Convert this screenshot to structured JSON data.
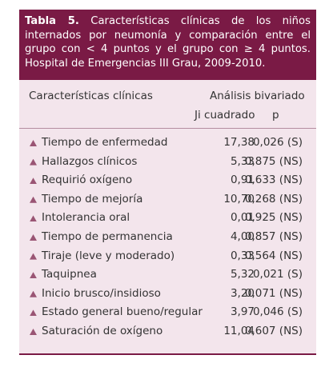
{
  "title": {
    "label": "Tabla 5.",
    "text": "Características clínicas de los niños internados por neumonía y comparación entre el grupo con < 4 puntos y el grupo con ≥ 4 puntos. Hospital de Emergencias III Grau, 2009-2010."
  },
  "table": {
    "header": {
      "col1": "Características clínicas",
      "group": "Análisis bivariado",
      "col2": "Ji cuadrado",
      "col3": "p"
    },
    "rows": [
      [
        "Tiempo de enfermedad",
        "17,38",
        "0,026 (S)"
      ],
      [
        "Hallazgos clínicos",
        "5,33",
        "0,875 (NS)"
      ],
      [
        "Requirió oxígeno",
        "0,91",
        "0,633 (NS)"
      ],
      [
        "Tiempo de mejoría",
        "10,70",
        "0,268 (NS)"
      ],
      [
        "Intolerancia oral",
        "0,01",
        "0,925 (NS)"
      ],
      [
        "Tiempo de permanencia",
        "4,00",
        "0,857 (NS)"
      ],
      [
        "Tiraje (leve y moderado)",
        "0,33",
        "0,564 (NS)"
      ],
      [
        "Taquipnea",
        "5,32",
        "0,021 (S)"
      ],
      [
        "Inicio brusco/insidioso",
        "3,20",
        "0,071 (NS)"
      ],
      [
        "Estado general bueno/regular",
        "3,97",
        "0,046 (S)"
      ],
      [
        "Saturación de oxígeno",
        "11,04",
        "0,607 (NS)"
      ]
    ]
  }
}
